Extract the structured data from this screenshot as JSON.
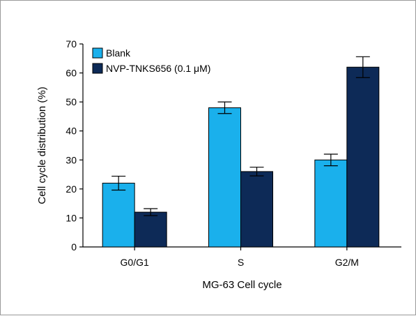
{
  "chart_data": {
    "type": "bar",
    "categories": [
      "G0/G1",
      "S",
      "G2/M"
    ],
    "series": [
      {
        "name": "Blank",
        "values": [
          22,
          48,
          30
        ],
        "errors": [
          2.4,
          2.0,
          2.0
        ],
        "color": "#1ab0ec"
      },
      {
        "name": "NVP-TNKS656 (0.1 μM)",
        "values": [
          12,
          26,
          62
        ],
        "errors": [
          1.2,
          1.5,
          3.6
        ],
        "color": "#0d2a57"
      }
    ],
    "xlabel": "MG-63 Cell cycle",
    "ylabel": "Cell cycle distribution (%)",
    "ylim": [
      0,
      70
    ],
    "yticks": [
      0,
      10,
      20,
      30,
      40,
      50,
      60,
      70
    ],
    "legend_position": "top-left",
    "grid": false
  }
}
